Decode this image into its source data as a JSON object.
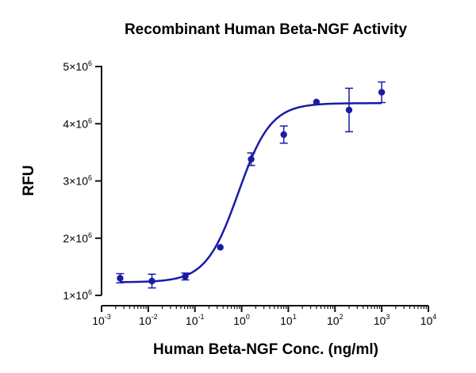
{
  "chart_data": {
    "type": "scatter",
    "title": "Recombinant Human Beta-NGF Activity",
    "xlabel": "Human Beta-NGF Conc. (ng/ml)",
    "ylabel": "RFU",
    "x_scale": "log10",
    "xlim": [
      0.001,
      10000
    ],
    "ylim": [
      1000000,
      5000000
    ],
    "x_ticks": [
      {
        "value": 0.001,
        "base": "10",
        "exp": "-3"
      },
      {
        "value": 0.01,
        "base": "10",
        "exp": "-2"
      },
      {
        "value": 0.1,
        "base": "10",
        "exp": "-1"
      },
      {
        "value": 1,
        "base": "10",
        "exp": "0"
      },
      {
        "value": 10,
        "base": "10",
        "exp": "1"
      },
      {
        "value": 100,
        "base": "10",
        "exp": "2"
      },
      {
        "value": 1000,
        "base": "10",
        "exp": "3"
      },
      {
        "value": 10000,
        "base": "10",
        "exp": "4"
      }
    ],
    "y_ticks": [
      {
        "value": 1000000,
        "mant": "1",
        "exp": "6"
      },
      {
        "value": 2000000,
        "mant": "2",
        "exp": "6"
      },
      {
        "value": 3000000,
        "mant": "3",
        "exp": "6"
      },
      {
        "value": 4000000,
        "mant": "4",
        "exp": "6"
      },
      {
        "value": 5000000,
        "mant": "5",
        "exp": "6"
      }
    ],
    "series": [
      {
        "name": "Beta-NGF",
        "color": "#1a1aa6",
        "points": [
          {
            "x": 0.0025,
            "y": 1300000,
            "err": 80000
          },
          {
            "x": 0.012,
            "y": 1250000,
            "err": 120000
          },
          {
            "x": 0.062,
            "y": 1330000,
            "err": 60000
          },
          {
            "x": 0.35,
            "y": 1840000,
            "err": 0
          },
          {
            "x": 1.6,
            "y": 3380000,
            "err": 110000
          },
          {
            "x": 8.0,
            "y": 3810000,
            "err": 150000
          },
          {
            "x": 40,
            "y": 4380000,
            "err": 0
          },
          {
            "x": 200,
            "y": 4240000,
            "err": 380000
          },
          {
            "x": 1000,
            "y": 4550000,
            "err": 180000
          }
        ],
        "fit": {
          "model": "4PL",
          "bottom": 1230000,
          "top": 4360000,
          "ec50": 0.85,
          "hill": 1.25
        }
      }
    ]
  }
}
